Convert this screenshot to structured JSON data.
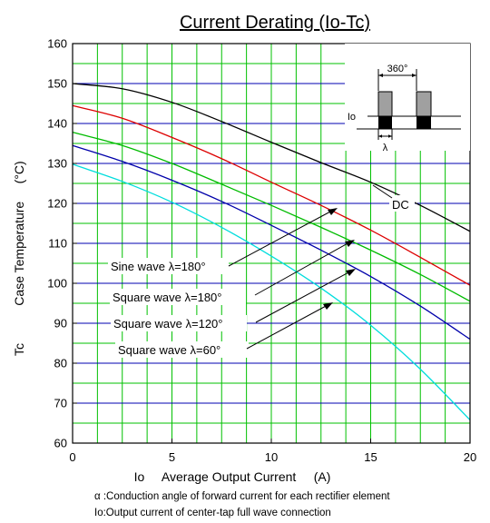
{
  "chart_data": {
    "type": "line",
    "title": "Current Derating  (Io-Tc)",
    "xlabel": "Io     Average Output Current     (A)",
    "ylabel_symbol": "Tc",
    "ylabel": "Case Temperature     (°C)",
    "xlim": [
      0,
      20
    ],
    "ylim": [
      60,
      160
    ],
    "x_ticks": [
      "0",
      "5",
      "10",
      "15",
      "20"
    ],
    "y_ticks": [
      "60",
      "70",
      "80",
      "90",
      "100",
      "110",
      "120",
      "130",
      "140",
      "150",
      "160"
    ],
    "grid": true,
    "series": [
      {
        "name": "DC",
        "color": "#000000",
        "x": [
          0,
          2.5,
          5,
          7.5,
          10,
          12.5,
          15,
          17.5,
          20
        ],
        "y": [
          150,
          148.7,
          145.3,
          140.5,
          135.3,
          130.2,
          125.3,
          119.5,
          113
        ]
      },
      {
        "name": "Sine wave λ=180°",
        "color": "#dd0000",
        "x": [
          0,
          2.5,
          5,
          7.5,
          10,
          12.5,
          15,
          17.5,
          20
        ],
        "y": [
          144.5,
          141.3,
          136.5,
          131.2,
          125.3,
          119.5,
          113.3,
          106.5,
          99.5
        ]
      },
      {
        "name": "Square wave λ=180°",
        "color": "#00bb00",
        "x": [
          0,
          2.5,
          5,
          7.5,
          10,
          12.5,
          15,
          17.5,
          20
        ],
        "y": [
          137.8,
          134.5,
          130,
          124.8,
          119.5,
          114,
          108.3,
          102.2,
          95.5
        ]
      },
      {
        "name": "Square wave λ=120°",
        "color": "#0000aa",
        "x": [
          0,
          2.5,
          5,
          7.5,
          10,
          12.5,
          15,
          17.5,
          20
        ],
        "y": [
          134.5,
          130.5,
          125.8,
          120.5,
          114.5,
          108.3,
          101.7,
          94.3,
          86
        ]
      },
      {
        "name": "Square wave λ=60°",
        "color": "#00dddd",
        "x": [
          0,
          2.5,
          5,
          7.5,
          10,
          12.5,
          15,
          17.5,
          20
        ],
        "y": [
          129.8,
          125.5,
          120.3,
          114,
          106.8,
          98.8,
          89.5,
          78.5,
          65.8
        ]
      }
    ],
    "annotations": [
      {
        "text": "DC"
      },
      {
        "text": "Sine wave λ=180°"
      },
      {
        "text": "Square wave λ=180°"
      },
      {
        "text": "Square wave λ=120°"
      },
      {
        "text": "Square wave λ=60°"
      }
    ],
    "inset": {
      "angle_label": "360°",
      "io_label": "Io",
      "lambda_label": "λ"
    },
    "notes": [
      "α :Conduction angle of forward current for each rectifier element",
      "Io:Output current of center-tap full wave connection"
    ],
    "colors": {
      "grid_green": "#00c000",
      "grid_blue": "#0000b0",
      "inset_gray": "#a0a0a0"
    }
  }
}
